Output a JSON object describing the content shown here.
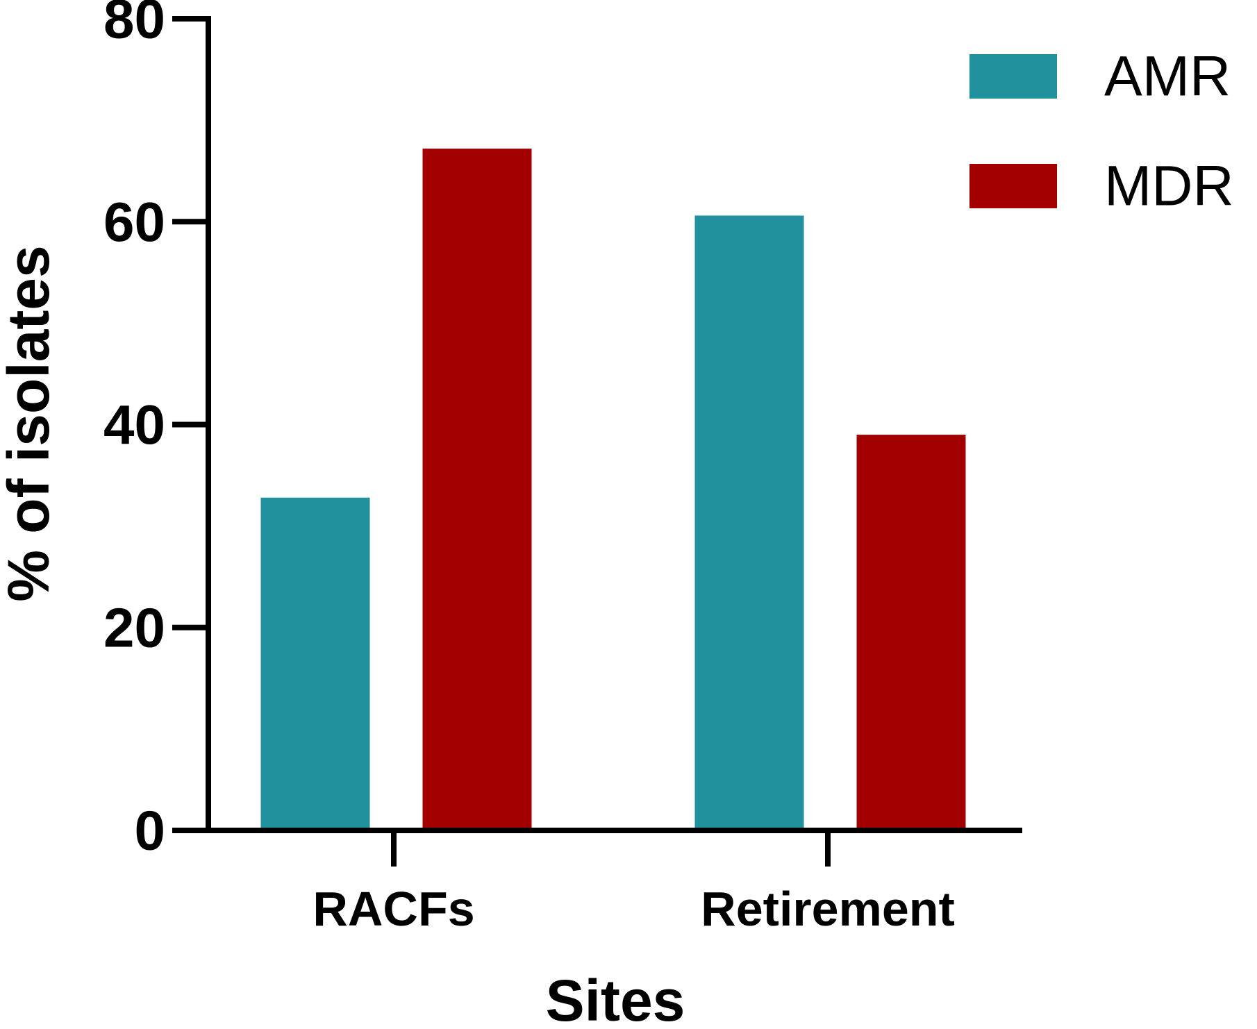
{
  "chart_data": {
    "type": "bar",
    "title": "",
    "xlabel": "Sites",
    "ylabel": "% of isolates",
    "categories": [
      "RACFs",
      "Retirement"
    ],
    "series": [
      {
        "name": "AMR",
        "color": "#22919E",
        "values": [
          32.8,
          60.6
        ]
      },
      {
        "name": "MDR",
        "color": "#A30000",
        "values": [
          67.2,
          39.0
        ]
      }
    ],
    "ylim": [
      0,
      80
    ],
    "yticks": [
      0,
      20,
      40,
      60,
      80
    ],
    "grid": false,
    "legend_position": "top-right"
  }
}
